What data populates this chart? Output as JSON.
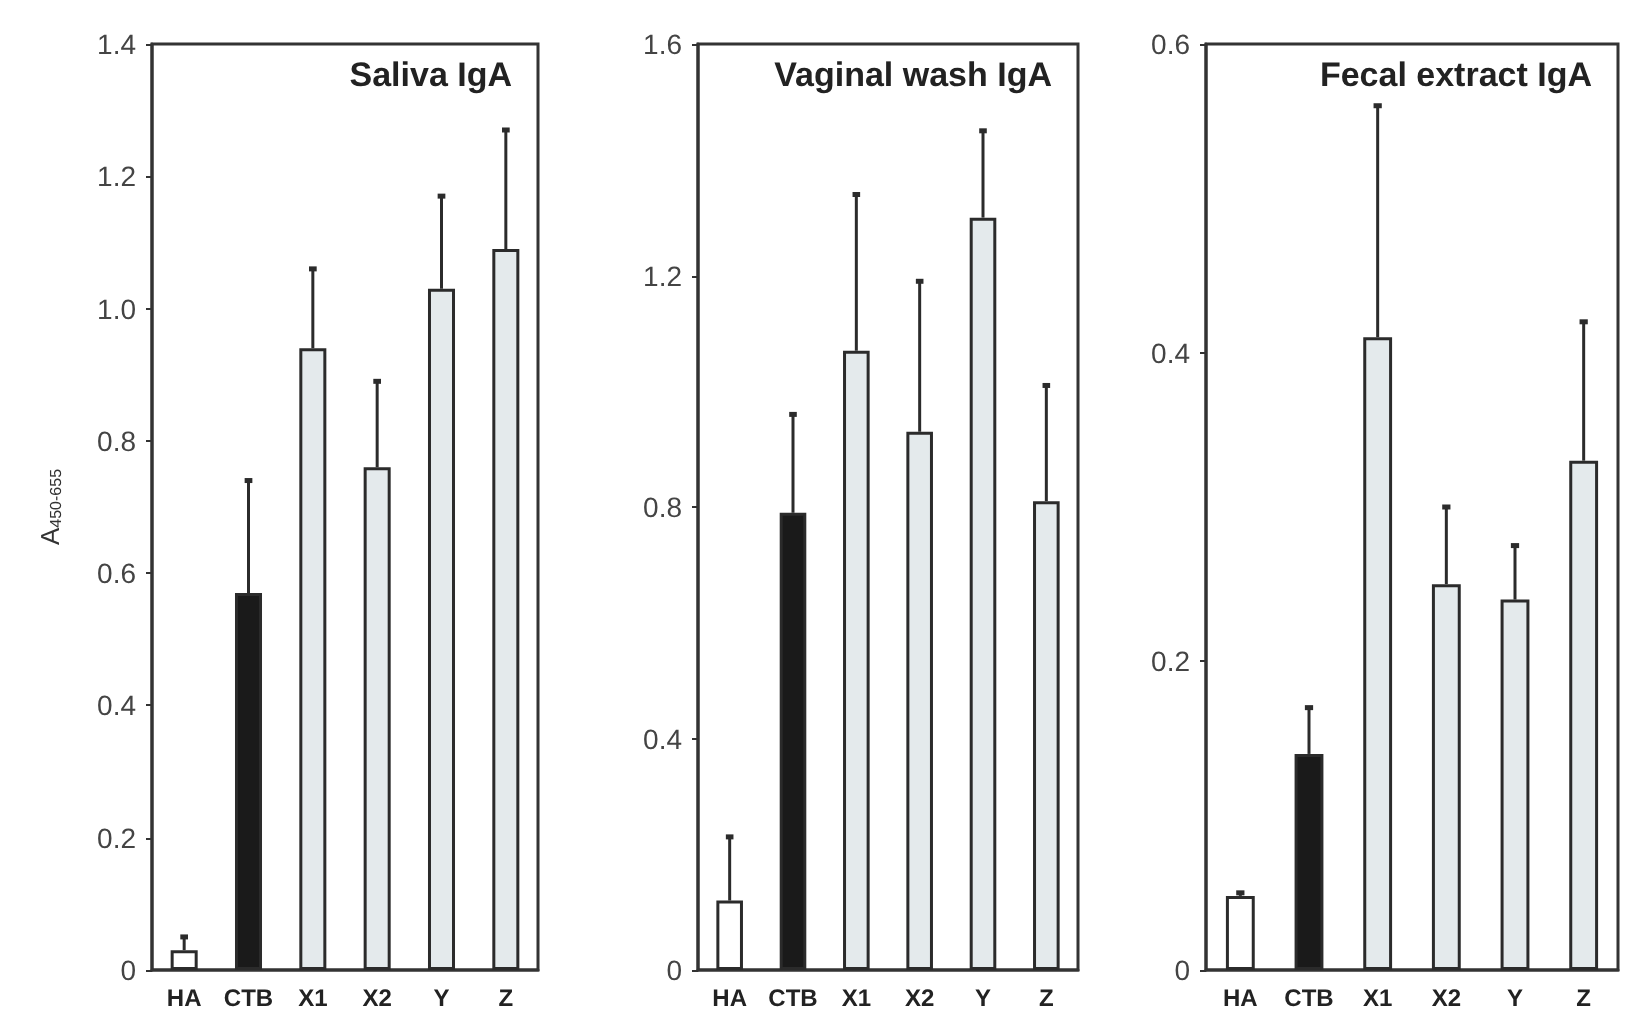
{
  "chart_data": [
    {
      "type": "bar",
      "title": "Saliva IgA",
      "ylabel": "A$_{450-655}$",
      "categories": [
        "HA",
        "CTB",
        "X1",
        "X2",
        "Y",
        "Z"
      ],
      "values": [
        0.03,
        0.57,
        0.94,
        0.76,
        1.03,
        1.09
      ],
      "colors": [
        "#ffffff",
        "#1a1a1a",
        "#e4eaec",
        "#e4eaec",
        "#e4eaec",
        "#e4eaec"
      ],
      "errors": [
        [
          0.03,
          0.05
        ],
        [
          0.57,
          0.74
        ],
        [
          0.94,
          1.06
        ],
        [
          0.76,
          0.89
        ],
        [
          1.03,
          1.17
        ],
        [
          1.09,
          1.27
        ]
      ],
      "ylim": [
        0,
        1.4
      ],
      "yticks": [
        0,
        0.2,
        0.4,
        0.6,
        0.8,
        {
          "value": 1,
          "label": "1.0"
        },
        1.2,
        1.4
      ]
    },
    {
      "type": "bar",
      "title": "Vaginal wash IgA",
      "categories": [
        "HA",
        "CTB",
        "X1",
        "X2",
        "Y",
        "Z"
      ],
      "values": [
        0.12,
        0.79,
        1.07,
        0.93,
        1.3,
        0.81
      ],
      "colors": [
        "#ffffff",
        "#1a1a1a",
        "#e4eaec",
        "#e4eaec",
        "#e4eaec",
        "#e4eaec"
      ],
      "errors": [
        [
          0.12,
          0.23
        ],
        [
          0.79,
          0.96
        ],
        [
          1.07,
          1.34
        ],
        [
          0.93,
          1.19
        ],
        [
          1.3,
          1.45
        ],
        [
          0.81,
          1.01
        ]
      ],
      "ylim": [
        0,
        1.6
      ],
      "yticks": [
        0,
        0.4,
        0.8,
        1.2,
        1.6
      ]
    },
    {
      "type": "bar",
      "title": "Fecal extract IgA",
      "categories": [
        "HA",
        "CTB",
        "X1",
        "X2",
        "Y",
        "Z"
      ],
      "values": [
        0.048,
        0.14,
        0.41,
        0.25,
        0.24,
        0.33
      ],
      "colors": [
        "#ffffff",
        "#1a1a1a",
        "#e4eaec",
        "#e4eaec",
        "#e4eaec",
        "#e4eaec"
      ],
      "errors": [
        [
          0.048,
          0.05
        ],
        [
          0.14,
          0.17
        ],
        [
          0.41,
          0.56
        ],
        [
          0.25,
          0.3
        ],
        [
          0.24,
          0.275
        ],
        [
          0.33,
          0.42
        ]
      ],
      "ylim": [
        0,
        0.6
      ],
      "yticks": [
        0,
        0.2,
        0.4,
        0.6
      ]
    }
  ]
}
